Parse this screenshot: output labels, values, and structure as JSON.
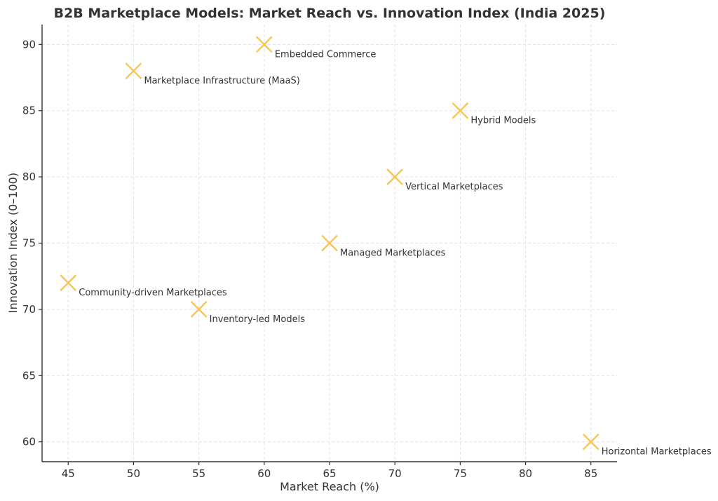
{
  "chart_data": {
    "type": "scatter",
    "title": "B2B Marketplace Models: Market Reach vs. Innovation Index (India 2025)",
    "xlabel": "Market Reach (%)",
    "ylabel": "Innovation Index (0–100)",
    "xlim": [
      43,
      87
    ],
    "ylim": [
      58.5,
      91.5
    ],
    "xticks": [
      45,
      50,
      55,
      60,
      65,
      70,
      75,
      80,
      85
    ],
    "yticks": [
      60,
      65,
      70,
      75,
      80,
      85,
      90
    ],
    "grid": true,
    "marker": "x",
    "marker_color": "#f7c65a",
    "points": [
      {
        "label": "Embedded Commerce",
        "x": 60,
        "y": 90
      },
      {
        "label": "Marketplace Infrastructure (MaaS)",
        "x": 50,
        "y": 88
      },
      {
        "label": "Hybrid Models",
        "x": 75,
        "y": 85
      },
      {
        "label": "Vertical Marketplaces",
        "x": 70,
        "y": 80
      },
      {
        "label": "Managed Marketplaces",
        "x": 65,
        "y": 75
      },
      {
        "label": "Community-driven Marketplaces",
        "x": 45,
        "y": 72
      },
      {
        "label": "Inventory-led Models",
        "x": 55,
        "y": 70
      },
      {
        "label": "Horizontal Marketplaces",
        "x": 85,
        "y": 60
      }
    ]
  }
}
